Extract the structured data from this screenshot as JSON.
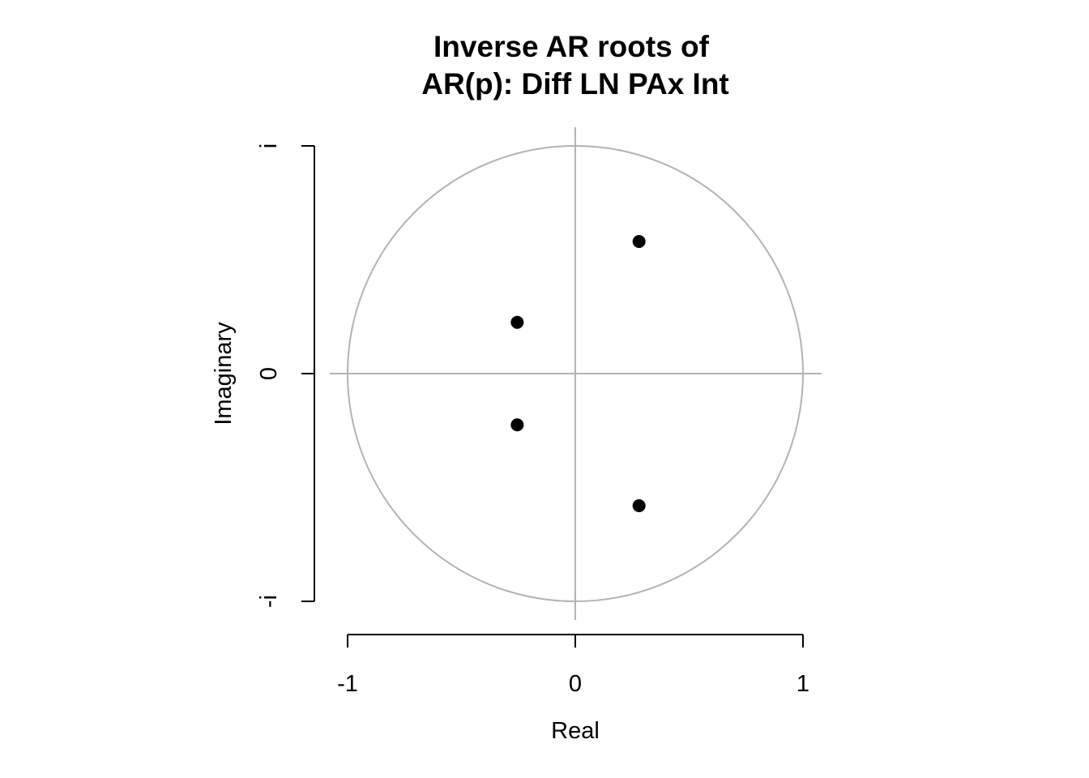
{
  "chart_data": {
    "type": "scatter",
    "title": "Inverse AR roots of",
    "subtitle": "AR(p): Diff LN PAx Int",
    "xlabel": "Real",
    "ylabel": "Imaginary",
    "xlim": [
      -1,
      1
    ],
    "ylim": [
      -1,
      1
    ],
    "x_ticks": [
      {
        "value": -1,
        "label": "-1"
      },
      {
        "value": 0,
        "label": "0"
      },
      {
        "value": 1,
        "label": "1"
      }
    ],
    "y_ticks": [
      {
        "value": -1,
        "label": "-i"
      },
      {
        "value": 0,
        "label": "0"
      },
      {
        "value": 1,
        "label": "i"
      }
    ],
    "unit_circle": true,
    "grid": false,
    "reference_color": "#b3b3b3",
    "point_color": "#000000",
    "points": [
      {
        "x": 0.28,
        "y": 0.58
      },
      {
        "x": -0.255,
        "y": 0.225
      },
      {
        "x": -0.255,
        "y": -0.225
      },
      {
        "x": 0.28,
        "y": -0.58
      }
    ]
  }
}
